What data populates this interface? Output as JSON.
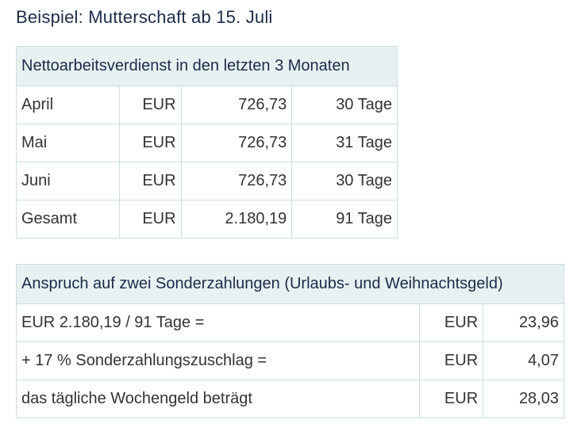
{
  "title": "Beispiel: Mutterschaft ab 15. Juli",
  "table1": {
    "header": "Nettoarbeitsverdienst in den letzten 3 Monaten",
    "rows": [
      {
        "label": "April",
        "currency": "EUR",
        "amount": "726,73",
        "days": "30 Tage"
      },
      {
        "label": "Mai",
        "currency": "EUR",
        "amount": "726,73",
        "days": "31 Tage"
      },
      {
        "label": "Juni",
        "currency": "EUR",
        "amount": "726,73",
        "days": "30 Tage"
      },
      {
        "label": "Gesamt",
        "currency": "EUR",
        "amount": "2.180,19",
        "days": "91 Tage"
      }
    ]
  },
  "table2": {
    "header": "Anspruch auf zwei Sonderzahlungen (Urlaubs- und Weihnachtsgeld)",
    "rows": [
      {
        "label": "EUR 2.180,19 / 91 Tage =",
        "currency": "EUR",
        "amount": "23,96"
      },
      {
        "label": "+ 17 % Sonderzahlungszuschlag =",
        "currency": "EUR",
        "amount": "4,07"
      },
      {
        "label": "das tägliche Wochengeld beträgt",
        "currency": "EUR",
        "amount": "28,03"
      }
    ]
  }
}
